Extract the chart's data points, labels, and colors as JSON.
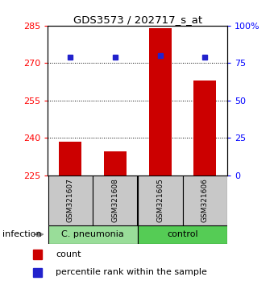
{
  "title": "GDS3573 / 202717_s_at",
  "samples": [
    "GSM321607",
    "GSM321608",
    "GSM321605",
    "GSM321606"
  ],
  "count_values": [
    238.5,
    234.5,
    284.0,
    263.0
  ],
  "percentile_values": [
    79,
    79,
    80,
    79
  ],
  "ylim_left": [
    225,
    285
  ],
  "ylim_right": [
    0,
    100
  ],
  "yticks_left": [
    225,
    240,
    255,
    270,
    285
  ],
  "yticks_right": [
    0,
    25,
    50,
    75,
    100
  ],
  "bar_color": "#cc0000",
  "dot_color": "#2222cc",
  "groups": [
    {
      "label": "C. pneumonia",
      "indices": [
        0,
        1
      ],
      "color": "#99dd99"
    },
    {
      "label": "control",
      "indices": [
        2,
        3
      ],
      "color": "#55cc55"
    }
  ],
  "group_label_prefix": "infection",
  "sample_box_color": "#c8c8c8",
  "bar_width": 0.5,
  "base_value": 225,
  "legend_count_label": "count",
  "legend_percentile_label": "percentile rank within the sample"
}
